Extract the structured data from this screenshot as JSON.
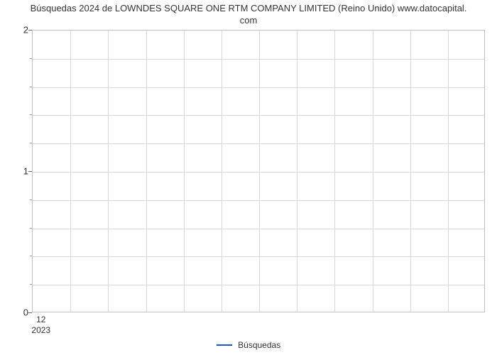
{
  "chart": {
    "type": "line",
    "title_line1": "Búsquedas 2024 de LOWNDES SQUARE ONE RTM COMPANY LIMITED (Reino Unido) www.datocapital.",
    "title_line2": "com",
    "title_fontsize": 13,
    "title_color": "#333333",
    "background_color": "#ffffff",
    "plot_border_color": "#c0c0c0",
    "grid_color": "#d8d8d8",
    "y_axis": {
      "min": 0,
      "max": 2,
      "major_ticks": [
        0,
        1,
        2
      ],
      "tick_labels": [
        "0",
        "1",
        "2"
      ],
      "minor_ticks_between": 4,
      "label_fontsize": 13,
      "label_color": "#333333"
    },
    "x_axis": {
      "major_tick_position": 0.02,
      "tick_label": "12",
      "year_label": "2023",
      "vertical_gridlines": 12,
      "label_fontsize": 12,
      "label_color": "#333333"
    },
    "series": [
      {
        "name": "Búsquedas",
        "color": "#2255cc",
        "line_width": 2,
        "data": []
      }
    ],
    "legend": {
      "position": "bottom-center",
      "label": "Búsquedas",
      "line_color": "#2255cc",
      "fontsize": 12,
      "text_color": "#333333"
    }
  }
}
